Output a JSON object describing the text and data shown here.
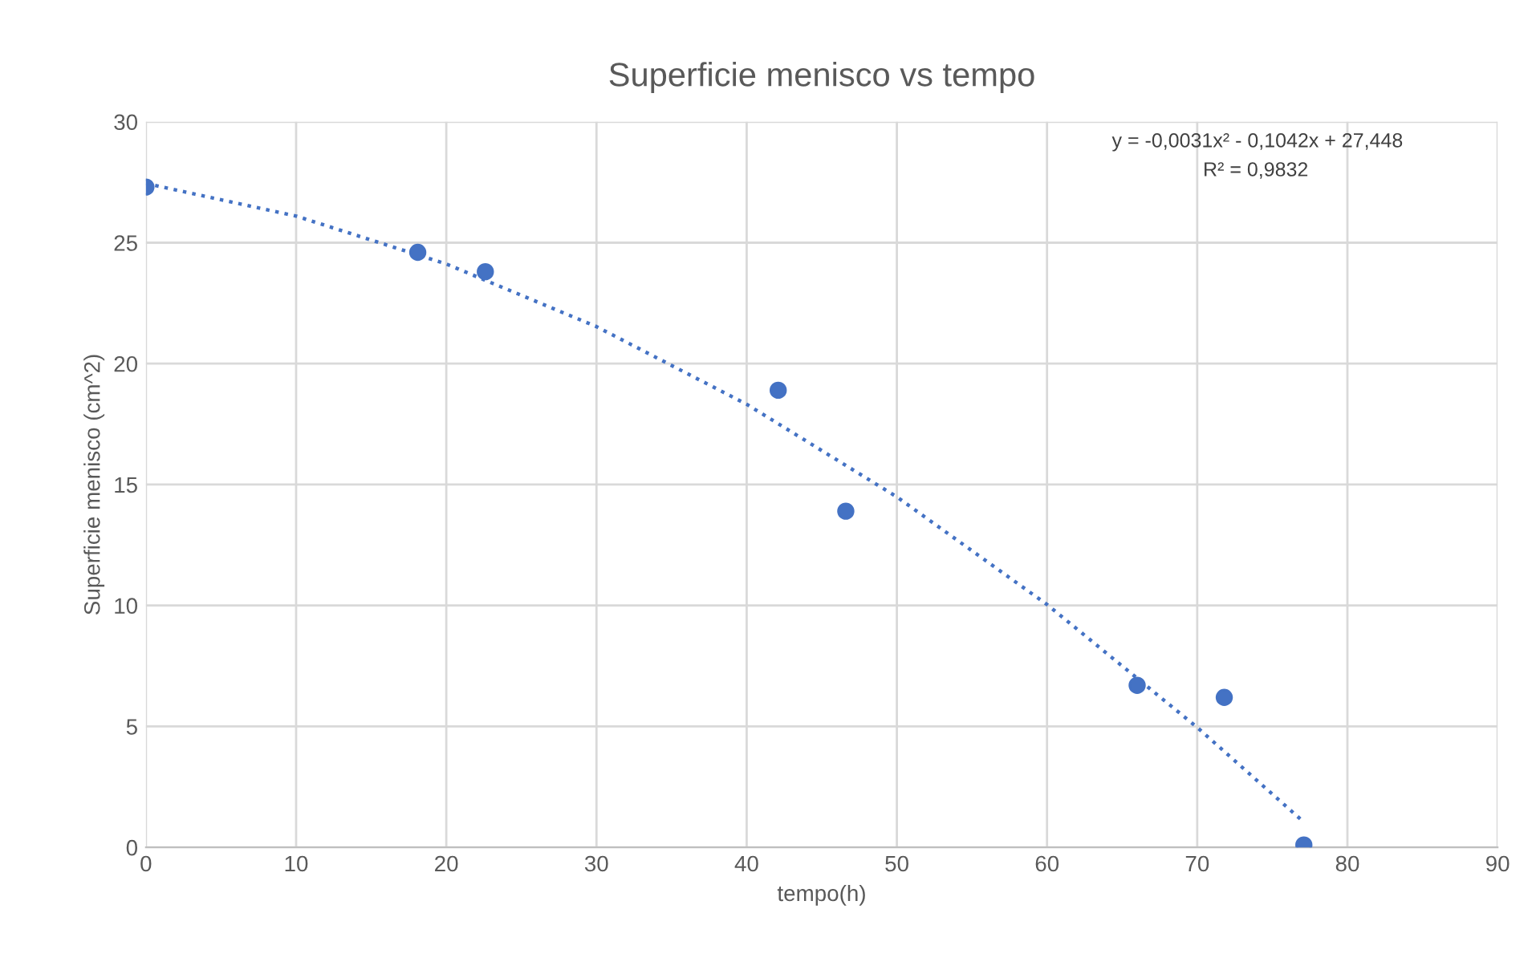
{
  "chart_data": {
    "type": "scatter",
    "title": "Superficie menisco vs tempo",
    "xlabel": "tempo(h)",
    "ylabel": "Superficie menisco (cm^2)",
    "xlim": [
      0,
      90
    ],
    "xticks": [
      0,
      10,
      20,
      30,
      40,
      50,
      60,
      70,
      80,
      90
    ],
    "ylim": [
      0,
      30
    ],
    "yticks": [
      0,
      5,
      10,
      15,
      20,
      25,
      30
    ],
    "grid": true,
    "legend": false,
    "series": [
      {
        "color": "#4472c4",
        "marker": "circle",
        "x": [
          0,
          18.1,
          22.6,
          42.1,
          46.6,
          66.0,
          71.8,
          77.1
        ],
        "values": [
          27.3,
          24.6,
          23.8,
          18.9,
          13.9,
          6.7,
          6.2,
          0.1
        ]
      },
      {
        "type": "line",
        "color": "#4472c4",
        "line_style": "dotted",
        "marker": "none",
        "x": [
          0,
          10,
          20,
          30,
          40,
          50,
          60,
          70,
          77
        ],
        "values": [
          27.45,
          26.1,
          24.12,
          21.53,
          18.32,
          14.49,
          10.04,
          4.96,
          1.1
        ]
      }
    ],
    "annotations": [
      "y = -0,0031x² - 0,1042x + 27,448",
      "R² = 0,9832"
    ]
  }
}
